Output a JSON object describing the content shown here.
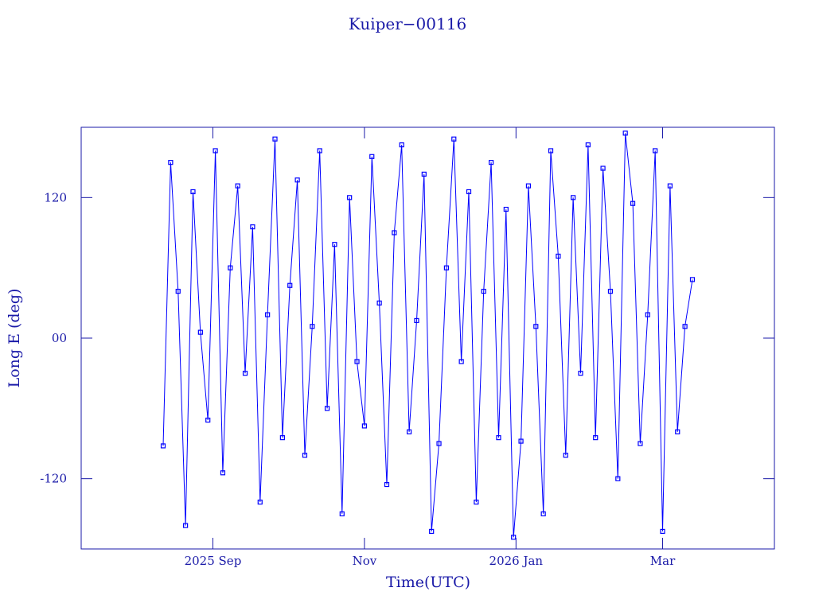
{
  "chart_data": {
    "type": "line",
    "title": "Kuiper−00116",
    "x_label": "Time(UTC)",
    "y_label": "Long E (deg)",
    "x": [
      "2025-08-12",
      "2025-08-15",
      "2025-08-18",
      "2025-08-21",
      "2025-08-24",
      "2025-08-27",
      "2025-08-30",
      "2025-09-02",
      "2025-09-05",
      "2025-09-08",
      "2025-09-11",
      "2025-09-14",
      "2025-09-17",
      "2025-09-20",
      "2025-09-23",
      "2025-09-26",
      "2025-09-29",
      "2025-10-02",
      "2025-10-05",
      "2025-10-08",
      "2025-10-11",
      "2025-10-14",
      "2025-10-17",
      "2025-10-20",
      "2025-10-23",
      "2025-10-26",
      "2025-10-29",
      "2025-11-01",
      "2025-11-04",
      "2025-11-07",
      "2025-11-10",
      "2025-11-13",
      "2025-11-16",
      "2025-11-19",
      "2025-11-22",
      "2025-11-25",
      "2025-11-28",
      "2025-12-01",
      "2025-12-04",
      "2025-12-07",
      "2025-12-10",
      "2025-12-13",
      "2025-12-16",
      "2025-12-19",
      "2025-12-22",
      "2025-12-25",
      "2025-12-28",
      "2025-12-31",
      "2026-01-03",
      "2026-01-06",
      "2026-01-09",
      "2026-01-12",
      "2026-01-15",
      "2026-01-18",
      "2026-01-21",
      "2026-01-24",
      "2026-01-27",
      "2026-01-30",
      "2026-02-02",
      "2026-02-05",
      "2026-02-08",
      "2026-02-11",
      "2026-02-14",
      "2026-02-17",
      "2026-02-20",
      "2026-02-23",
      "2026-02-26",
      "2026-03-01",
      "2026-03-04",
      "2026-03-07",
      "2026-03-10",
      "2026-03-13"
    ],
    "series": [
      {
        "name": "Kuiper−00116",
        "color": "#0000ff",
        "values": [
          -92,
          150,
          40,
          -160,
          125,
          5,
          -70,
          160,
          -115,
          60,
          130,
          -30,
          95,
          -140,
          20,
          170,
          -85,
          45,
          135,
          -100,
          10,
          160,
          -60,
          80,
          -150,
          120,
          -20,
          -75,
          155,
          30,
          -125,
          90,
          165,
          -80,
          15,
          140,
          -165,
          -90,
          60,
          170,
          -20,
          125,
          -140,
          40,
          150,
          -85,
          110,
          -170,
          -88,
          130,
          10,
          -150,
          160,
          70,
          -100,
          120,
          -30,
          165,
          -85,
          145,
          40,
          -120,
          175,
          115,
          -90,
          20,
          160,
          -165,
          130,
          -80,
          10,
          50
        ]
      }
    ],
    "xlim": [
      "2025-07-10",
      "2026-04-15"
    ],
    "xticks": [
      {
        "value": "2025-09-01",
        "label": "2025 Sep"
      },
      {
        "value": "2025-11-01",
        "label": "Nov"
      },
      {
        "value": "2026-01-01",
        "label": "2026 Jan"
      },
      {
        "value": "2026-03-01",
        "label": "Mar"
      }
    ],
    "ylim": [
      -180,
      180
    ],
    "yticks": [
      -120,
      {
        "value": 0,
        "label": "00"
      },
      120
    ]
  }
}
